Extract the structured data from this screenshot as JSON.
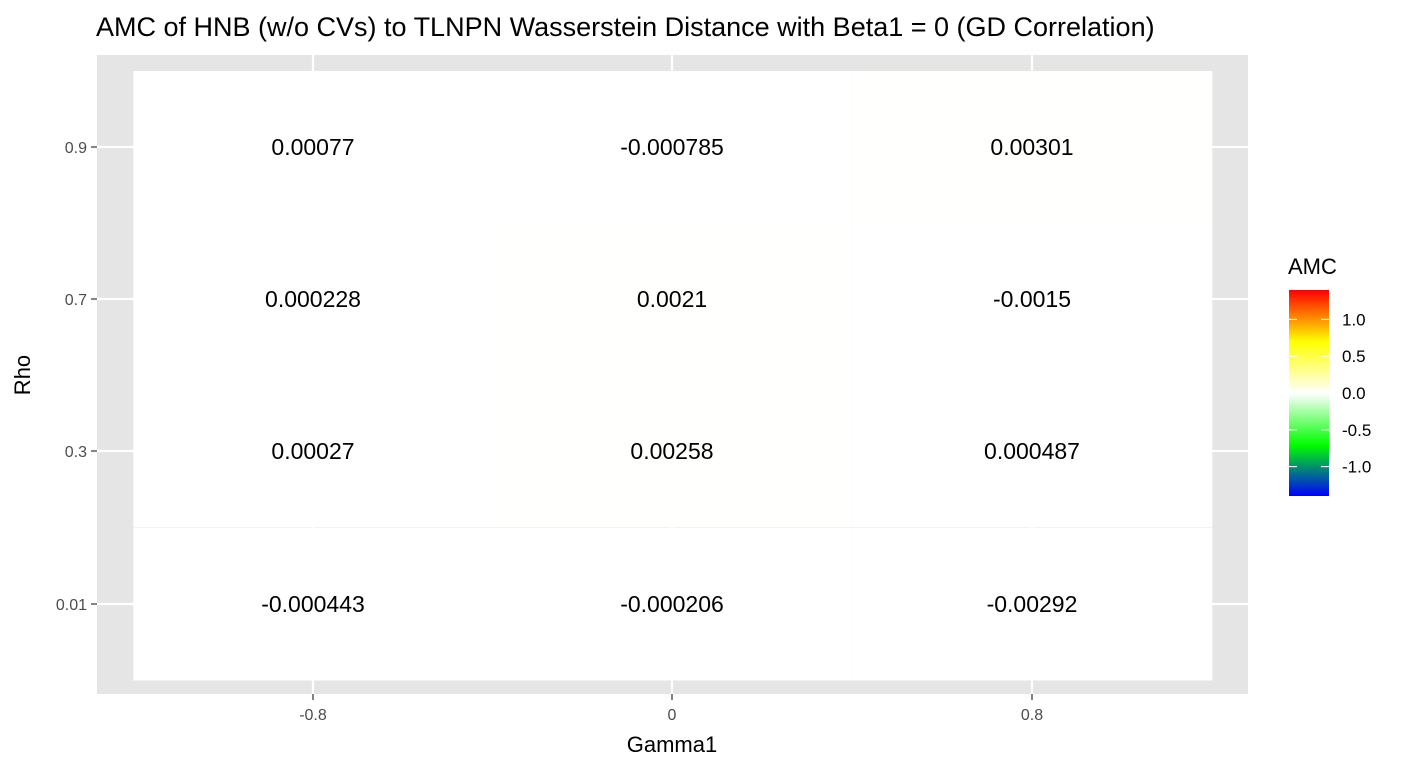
{
  "chart_data": {
    "type": "heatmap",
    "title": "AMC of HNB (w/o CVs) to TLNPN Wasserstein Distance with Beta1 = 0 (GD Correlation)",
    "xlabel": "Gamma1",
    "ylabel": "Rho",
    "x_categories": [
      "-0.8",
      "0",
      "0.8"
    ],
    "y_categories": [
      "0.01",
      "0.3",
      "0.7",
      "0.9"
    ],
    "cells": [
      {
        "x": "-0.8",
        "y": "0.9",
        "value": 0.00077,
        "label": "0.00077"
      },
      {
        "x": "0",
        "y": "0.9",
        "value": -0.000785,
        "label": "-0.000785"
      },
      {
        "x": "0.8",
        "y": "0.9",
        "value": 0.00301,
        "label": "0.00301"
      },
      {
        "x": "-0.8",
        "y": "0.7",
        "value": 0.000228,
        "label": "0.000228"
      },
      {
        "x": "0",
        "y": "0.7",
        "value": 0.0021,
        "label": "0.0021"
      },
      {
        "x": "0.8",
        "y": "0.7",
        "value": -0.0015,
        "label": "-0.0015"
      },
      {
        "x": "-0.8",
        "y": "0.3",
        "value": 0.00027,
        "label": "0.00027"
      },
      {
        "x": "0",
        "y": "0.3",
        "value": 0.00258,
        "label": "0.00258"
      },
      {
        "x": "0.8",
        "y": "0.3",
        "value": 0.000487,
        "label": "0.000487"
      },
      {
        "x": "-0.8",
        "y": "0.01",
        "value": -0.000443,
        "label": "-0.000443"
      },
      {
        "x": "0",
        "y": "0.01",
        "value": -0.000206,
        "label": "-0.000206"
      },
      {
        "x": "0.8",
        "y": "0.01",
        "value": -0.00292,
        "label": "-0.00292"
      }
    ],
    "legend": {
      "title": "AMC",
      "placement": "right",
      "limits": [
        -1.4,
        1.4
      ],
      "breaks": [
        1.0,
        0.5,
        0.0,
        -0.5,
        -1.0
      ],
      "break_labels": [
        "1.0",
        "0.5",
        "0.0",
        "-0.5",
        "-1.0"
      ],
      "colors": [
        "#0000ff",
        "#00ff00",
        "#ffffff",
        "#ffff00",
        "#ff0000"
      ]
    },
    "grid": true,
    "panel_background": "#e5e5e5",
    "grid_color": "#ffffff"
  }
}
